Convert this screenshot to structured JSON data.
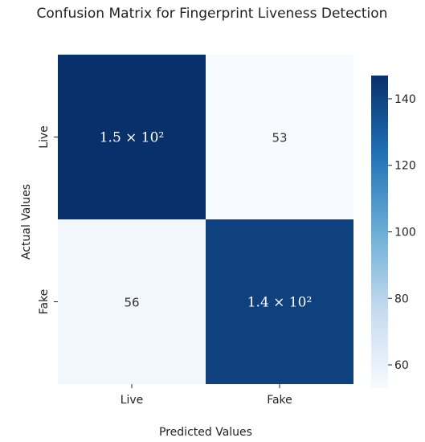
{
  "chart_data": {
    "type": "heatmap",
    "title": "Confusion Matrix for Fingerprint Liveness Detection",
    "xlabel": "Predicted Values",
    "ylabel": "Actual Values",
    "x_categories": [
      "Live",
      "Fake"
    ],
    "y_categories": [
      "Live",
      "Fake"
    ],
    "values": [
      [
        147,
        53
      ],
      [
        56,
        141
      ]
    ],
    "cell_labels": [
      [
        "1.5 × 10²",
        "53"
      ],
      [
        "56",
        "1.4 × 10²"
      ]
    ],
    "colorbar": {
      "min": 53,
      "max": 147,
      "ticks": [
        60,
        80,
        100,
        120,
        140
      ],
      "colormap": "Blues"
    },
    "grid": false
  }
}
